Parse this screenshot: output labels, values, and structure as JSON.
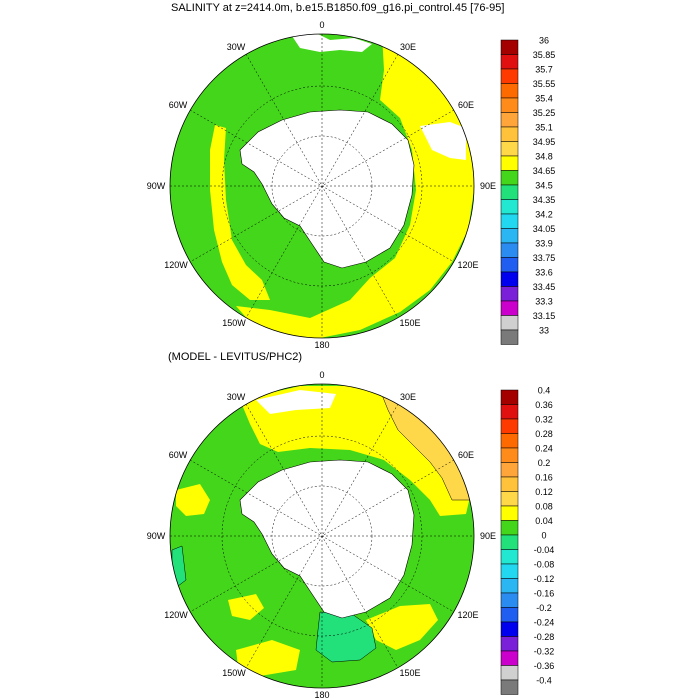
{
  "top_panel": {
    "title": "SALINITY at z=2414.0m, b.e15.B1850.f09_g16.pi_control.45 [76-95]",
    "lon_labels": [
      "0",
      "30E",
      "60E",
      "90E",
      "120E",
      "150E",
      "180",
      "150W",
      "120W",
      "90W",
      "60W",
      "30W"
    ],
    "colorbar": {
      "levels": [
        "36",
        "35.85",
        "35.7",
        "35.55",
        "35.4",
        "35.25",
        "35.1",
        "34.95",
        "34.8",
        "34.65",
        "34.5",
        "34.35",
        "34.2",
        "34.05",
        "33.9",
        "33.75",
        "33.6",
        "33.45",
        "33.3",
        "33.15",
        "33"
      ],
      "colors": [
        "#a50000",
        "#e01010",
        "#ff3a00",
        "#ff6a00",
        "#ff8c1a",
        "#ffa53a",
        "#ffc23a",
        "#ffd84a",
        "#ffff00",
        "#44d61a",
        "#22e07a",
        "#22e8d2",
        "#22d8f0",
        "#2ab6f2",
        "#2a8cf0",
        "#1f5ef0",
        "#0000ee",
        "#7a20d8",
        "#cc00cc",
        "#d0d0d0",
        "#7a7a7a"
      ]
    }
  },
  "bottom_panel": {
    "title": "(MODEL - LEVITUS/PHC2)",
    "lon_labels": [
      "0",
      "30E",
      "60E",
      "90E",
      "120E",
      "150E",
      "180",
      "150W",
      "120W",
      "90W",
      "60W",
      "30W"
    ],
    "colorbar": {
      "levels": [
        "0.4",
        "0.36",
        "0.32",
        "0.28",
        "0.24",
        "0.2",
        "0.16",
        "0.12",
        "0.08",
        "0.04",
        "0",
        "-0.04",
        "-0.08",
        "-0.12",
        "-0.16",
        "-0.2",
        "-0.24",
        "-0.28",
        "-0.32",
        "-0.36",
        "-0.4"
      ],
      "colors": [
        "#a50000",
        "#e01010",
        "#ff3a00",
        "#ff6a00",
        "#ff8c1a",
        "#ffa53a",
        "#ffc23a",
        "#ffd84a",
        "#ffff00",
        "#44d61a",
        "#22e07a",
        "#22e8d2",
        "#22d8f0",
        "#2ab6f2",
        "#2a8cf0",
        "#1f5ef0",
        "#0000ee",
        "#7a20d8",
        "#cc00cc",
        "#d0d0d0",
        "#7a7a7a"
      ]
    }
  },
  "map_colors": {
    "green": "#44d61a",
    "yellow": "#ffff00",
    "light_orange": "#ffd84a",
    "cyan_green": "#22e07a",
    "land": "#ffffff"
  }
}
